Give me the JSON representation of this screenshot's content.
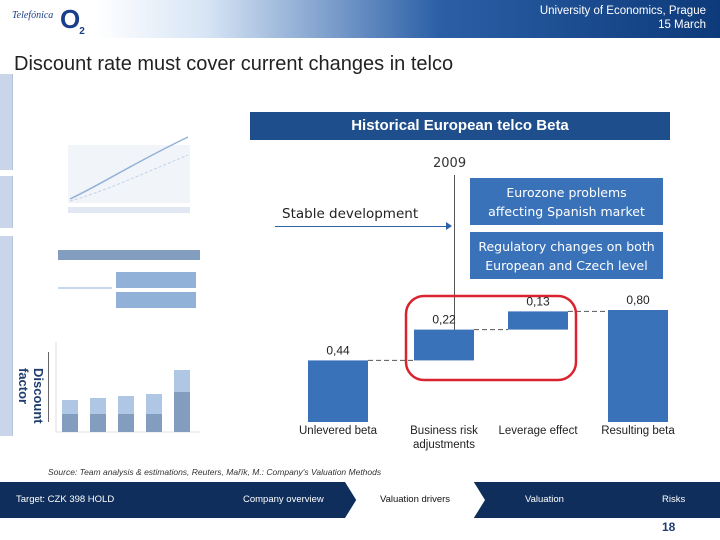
{
  "header": {
    "logo_brand": "Telefónica",
    "logo_o2": "O",
    "logo_o2_sub": "2",
    "line1": "University of Economics, Prague",
    "line2": "15 March"
  },
  "slide_title": "Discount rate must cover current changes in telco",
  "chart_title": "Historical European telco Beta",
  "timeline": {
    "year": "2009",
    "stable_label": "Stable development",
    "event1_line1": "Eurozone problems",
    "event1_line2": "affecting Spanish market",
    "event2_line1": "Regulatory changes on both",
    "event2_line2": "European and Czech level"
  },
  "side_label_line1": "Discount",
  "side_label_line2": "factor",
  "source": "Source: Team analysis & estimations, Reuters, Mařík, M.: Company's Valuation Methods",
  "chart_data": {
    "type": "bar",
    "subtype": "waterfall",
    "categories": [
      "Unlevered beta",
      "Business risk adjustments",
      "Leverage effect",
      "Resulting beta"
    ],
    "values": [
      0.44,
      0.22,
      0.13,
      0.8
    ],
    "value_labels": [
      "0,44",
      "0,22",
      "0,13",
      "0,80"
    ],
    "category_line1": [
      "Unlevered beta",
      "Business risk",
      "Leverage effect",
      "Resulting beta"
    ],
    "category_line2": [
      "",
      "adjustments",
      "",
      ""
    ],
    "ylim": [
      0,
      0.85
    ],
    "highlight_color": "#d9232e",
    "bar_color": "#3a72b9"
  },
  "nav": {
    "target": "Target: CZK 398 HOLD",
    "company_overview": "Company overview",
    "valuation_drivers": "Valuation drivers",
    "valuation": "Valuation",
    "risks": "Risks"
  },
  "page_number": "18",
  "colors": {
    "navy": "#0f2e5c",
    "accent_blue": "#3a72b9",
    "title_box": "#1f4e8c"
  }
}
